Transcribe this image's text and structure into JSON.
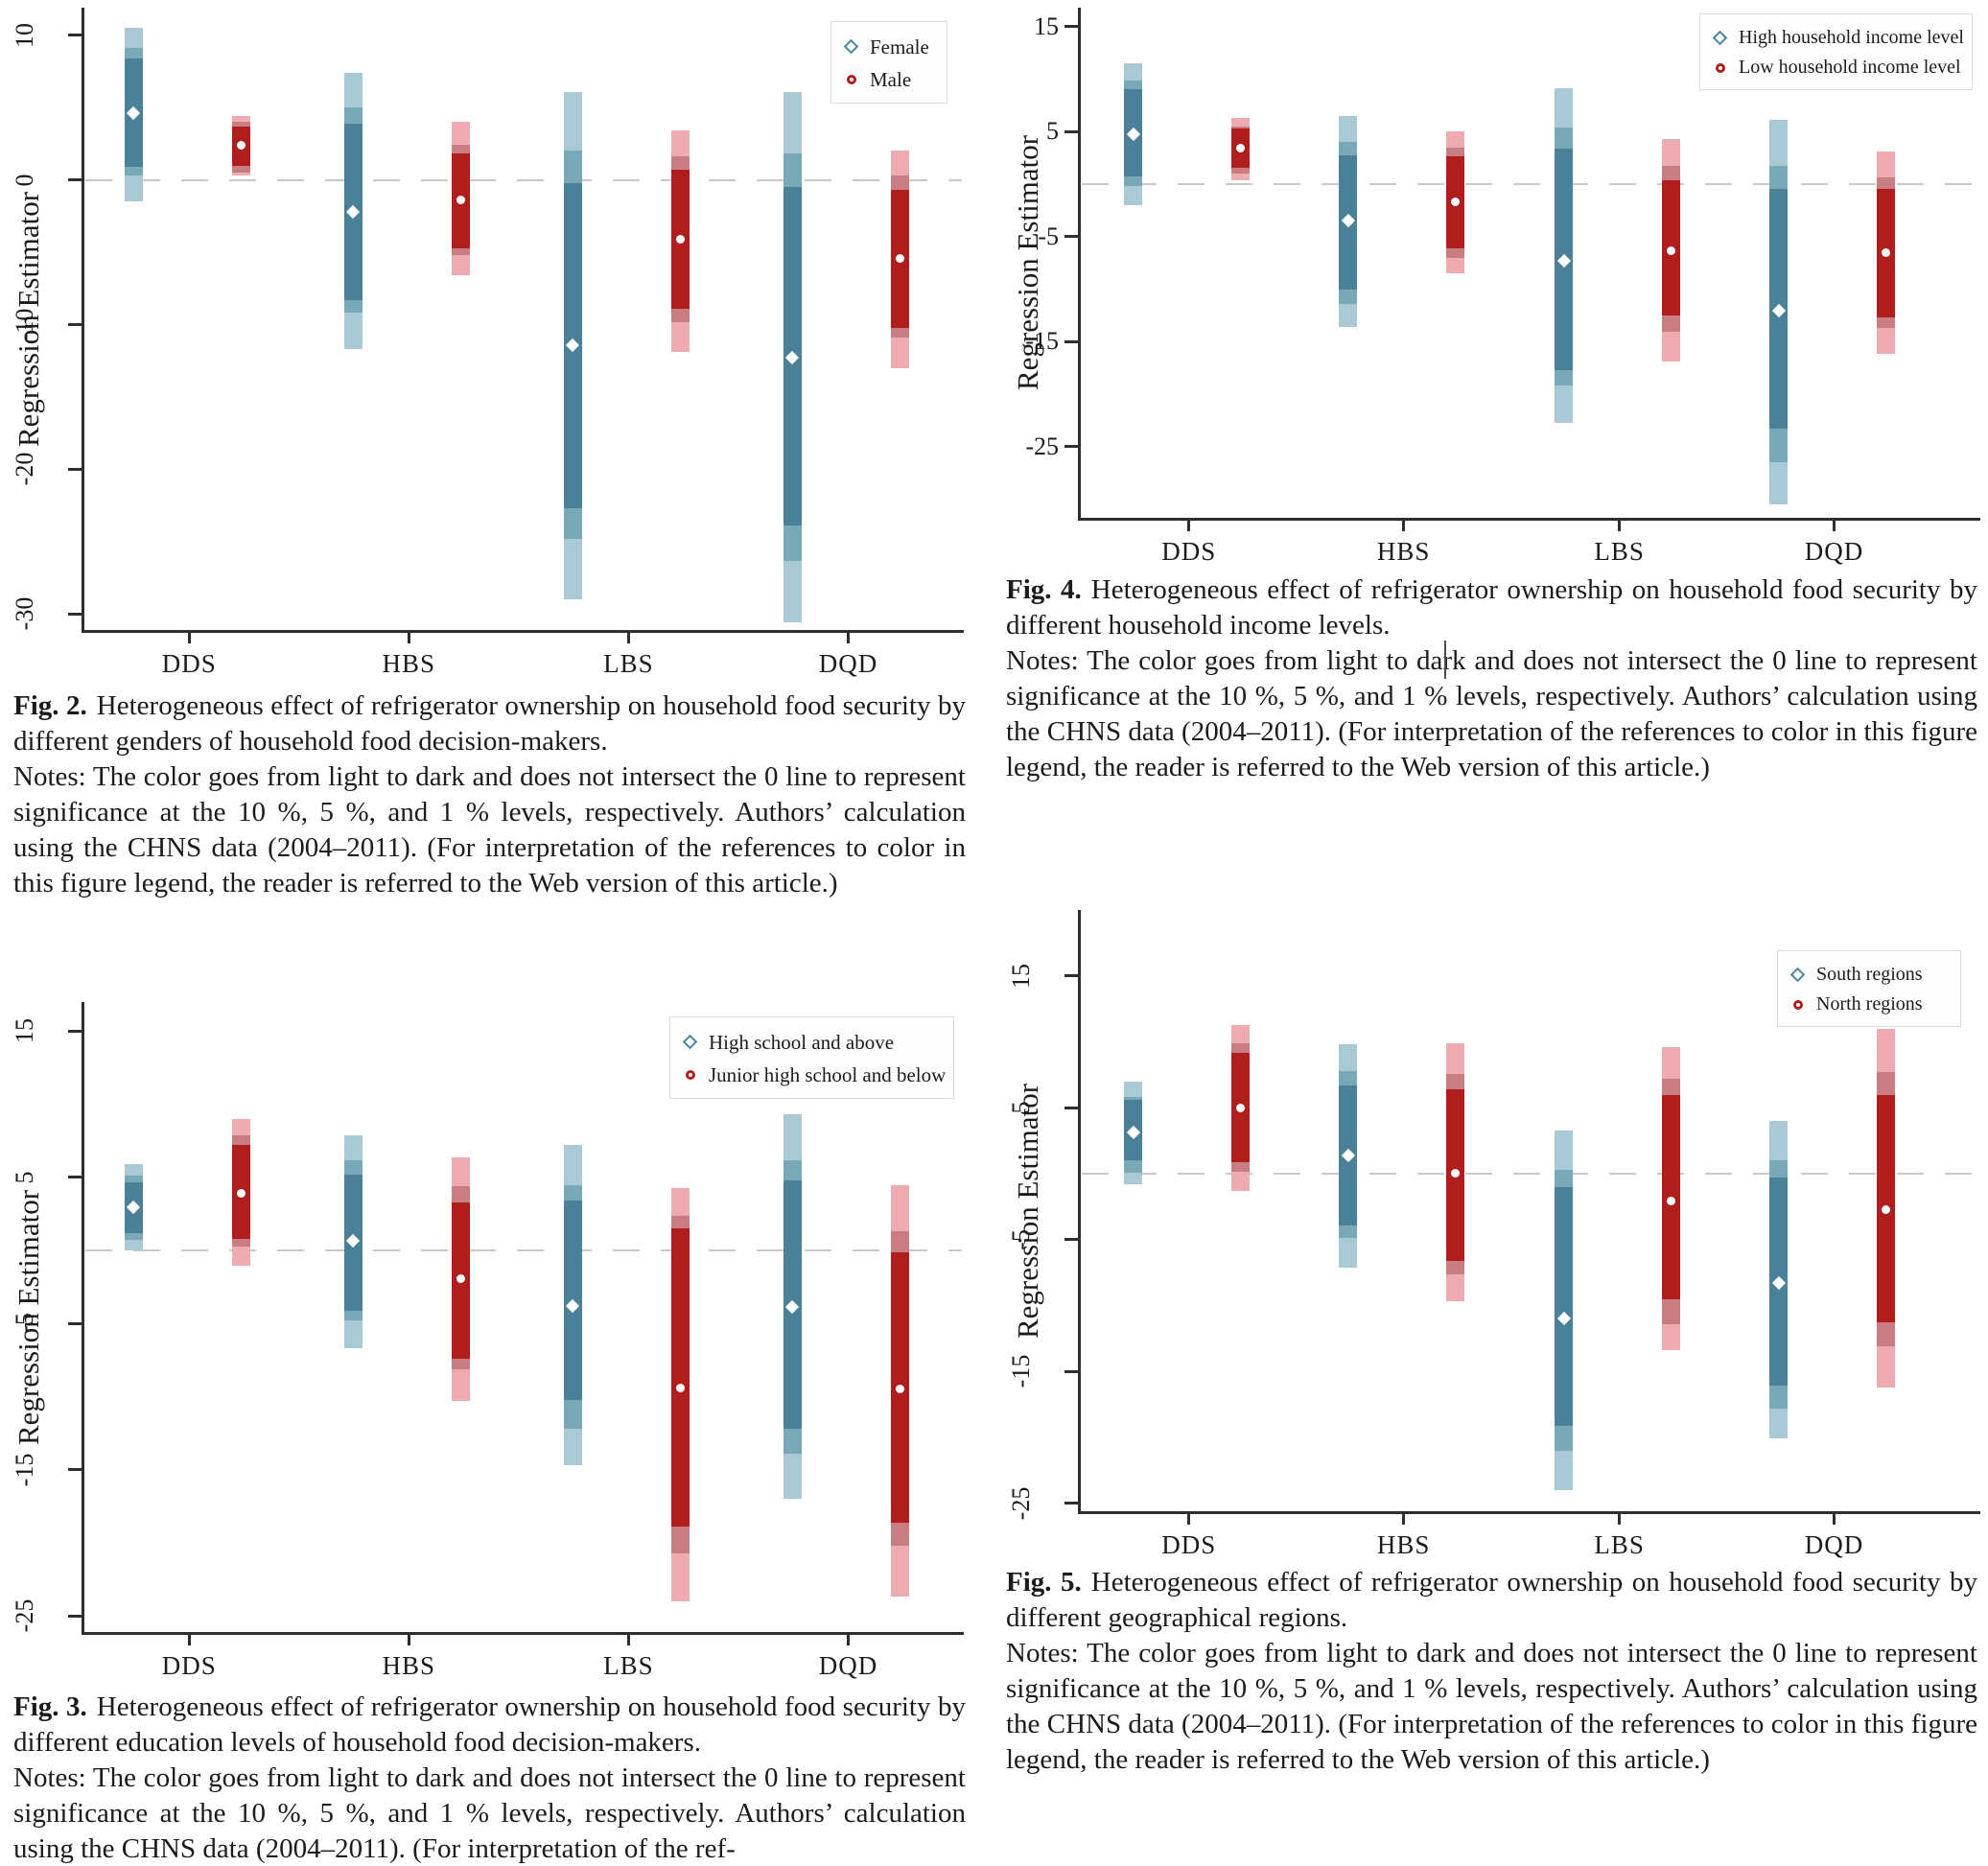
{
  "colors": {
    "teal": {
      "dark": "#4a8198",
      "mid": "#79a8b7",
      "light": "#a9c9d5"
    },
    "red": {
      "dark": "#b01d1d",
      "mid": "#c77d82",
      "light": "#eeabb1"
    },
    "axis": "#2e2e2e",
    "text": "#1b1b1b",
    "zero_line": "#c9c9c9",
    "legend_border": "#dcdcdc",
    "marker_fill": "#ffffff"
  },
  "chart_data": [
    {
      "id": "fig2",
      "type": "interval-bar",
      "ylabel": "Regression Estimator",
      "yticks": [
        10,
        0,
        -10,
        -20,
        -30
      ],
      "ylim": [
        11.9,
        -31.1
      ],
      "categories": [
        "DDS",
        "HBS",
        "LBS",
        "DQD"
      ],
      "zero_line": true,
      "legend_position": "top-right",
      "series": [
        {
          "name": "Female",
          "marker": "diamond",
          "palette": "teal",
          "bars": [
            {
              "outer": [
                -1.5,
                10.5
              ],
              "mid": [
                0.3,
                9.1
              ],
              "inner": [
                0.9,
                8.4
              ],
              "center": 4.6
            },
            {
              "outer": [
                -11.7,
                7.4
              ],
              "mid": [
                -9.2,
                5.0
              ],
              "inner": [
                -8.3,
                3.9
              ],
              "center": -2.2
            },
            {
              "outer": [
                -29.0,
                6.1
              ],
              "mid": [
                -24.8,
                2.0
              ],
              "inner": [
                -22.7,
                -0.2
              ],
              "center": -11.4
            },
            {
              "outer": [
                -30.6,
                6.1
              ],
              "mid": [
                -26.3,
                1.8
              ],
              "inner": [
                -23.9,
                -0.5
              ],
              "center": -12.3
            }
          ]
        },
        {
          "name": "Male",
          "marker": "circle",
          "palette": "red",
          "bars": [
            {
              "outer": [
                0.3,
                4.4
              ],
              "mid": [
                0.5,
                4.0
              ],
              "inner": [
                1.0,
                3.7
              ],
              "center": 2.4
            },
            {
              "outer": [
                -6.6,
                4.0
              ],
              "mid": [
                -5.2,
                2.4
              ],
              "inner": [
                -4.7,
                1.8
              ],
              "center": -1.4
            },
            {
              "outer": [
                -11.9,
                3.4
              ],
              "mid": [
                -9.8,
                1.6
              ],
              "inner": [
                -8.9,
                0.7
              ],
              "center": -4.1
            },
            {
              "outer": [
                -13.0,
                2.0
              ],
              "mid": [
                -10.9,
                0.3
              ],
              "inner": [
                -10.2,
                -0.7
              ],
              "center": -5.4
            }
          ]
        }
      ],
      "caption": {
        "label": "Fig. 2.",
        "body": "Heterogeneous effect of refrigerator ownership on household food security by different genders of household food decision-makers.",
        "notes": "Notes: The color goes from light to dark and does not intersect the 0 line to represent significance at the 10 %, 5 %, and 1 % levels, respectively. Authors’ calculation using the CHNS data (2004–2011). (For interpretation of the references to color in this figure legend, the reader is referred to the Web version of this article.)"
      }
    },
    {
      "id": "fig3",
      "type": "interval-bar",
      "ylabel": "Regression Estimator",
      "yticks": [
        15,
        5,
        -5,
        -15,
        -25
      ],
      "ylim": [
        17.0,
        -26.1
      ],
      "categories": [
        "DDS",
        "HBS",
        "LBS",
        "DQD"
      ],
      "zero_line": true,
      "legend_position": "top-right",
      "series": [
        {
          "name": "High school and above",
          "marker": "diamond",
          "palette": "teal",
          "bars": [
            {
              "outer": [
                0.0,
                5.9
              ],
              "mid": [
                0.7,
                5.1
              ],
              "inner": [
                1.2,
                4.65
              ],
              "center": 2.95
            },
            {
              "outer": [
                -6.7,
                7.9
              ],
              "mid": [
                -4.8,
                6.2
              ],
              "inner": [
                -4.1,
                5.2
              ],
              "center": 0.65
            },
            {
              "outer": [
                -14.7,
                7.2
              ],
              "mid": [
                -12.2,
                4.5
              ],
              "inner": [
                -10.2,
                3.4
              ],
              "center": -3.8
            },
            {
              "outer": [
                -17.0,
                9.3
              ],
              "mid": [
                -13.9,
                6.2
              ],
              "inner": [
                -12.2,
                4.8
              ],
              "center": -3.85
            }
          ]
        },
        {
          "name": "Junior high school and below",
          "marker": "circle",
          "palette": "red",
          "bars": [
            {
              "outer": [
                -1.05,
                9.0
              ],
              "mid": [
                0.3,
                7.9
              ],
              "inner": [
                0.8,
                7.2
              ],
              "center": 3.9
            },
            {
              "outer": [
                -10.3,
                6.4
              ],
              "mid": [
                -8.1,
                4.4
              ],
              "inner": [
                -7.4,
                3.3
              ],
              "center": -1.9
            },
            {
              "outer": [
                -24.0,
                4.3
              ],
              "mid": [
                -20.7,
                2.4
              ],
              "inner": [
                -18.9,
                1.5
              ],
              "center": -9.4
            },
            {
              "outer": [
                -23.7,
                4.5
              ],
              "mid": [
                -20.2,
                1.3
              ],
              "inner": [
                -18.6,
                -0.1
              ],
              "center": -9.5
            }
          ]
        }
      ],
      "caption": {
        "label": "Fig. 3.",
        "body": "Heterogeneous effect of refrigerator ownership on household food security by different education levels of household food decision-makers.",
        "notes": "Notes: The color goes from light to dark and does not intersect the 0 line to represent significance at the 10 %, 5 %, and 1 % levels, respectively. Authors’ calculation using the CHNS data (2004–2011). (For interpretation of the ref-"
      }
    },
    {
      "id": "fig4",
      "type": "interval-bar",
      "ylabel": "Regression Estimator",
      "yticks": [
        15,
        5,
        -5,
        -15,
        -25
      ],
      "ylim": [
        16.8,
        -31.8
      ],
      "categories": [
        "DDS",
        "HBS",
        "LBS",
        "DQD"
      ],
      "zero_line": true,
      "legend_position": "top-right",
      "series": [
        {
          "name": "High household income level",
          "marker": "diamond",
          "palette": "teal",
          "bars": [
            {
              "outer": [
                -2.0,
                11.5
              ],
              "mid": [
                -0.2,
                9.9
              ],
              "inner": [
                0.7,
                9.0
              ],
              "center": 4.7
            },
            {
              "outer": [
                -13.6,
                6.5
              ],
              "mid": [
                -11.4,
                4.0
              ],
              "inner": [
                -10.1,
                2.7
              ],
              "center": -3.5
            },
            {
              "outer": [
                -22.8,
                9.1
              ],
              "mid": [
                -19.2,
                5.4
              ],
              "inner": [
                -17.7,
                3.4
              ],
              "center": -7.3
            },
            {
              "outer": [
                -30.5,
                6.1
              ],
              "mid": [
                -26.5,
                1.7
              ],
              "inner": [
                -23.3,
                -0.5
              ],
              "center": -12.1
            }
          ]
        },
        {
          "name": "Low household income level",
          "marker": "circle",
          "palette": "red",
          "bars": [
            {
              "outer": [
                0.4,
                6.3
              ],
              "mid": [
                1.0,
                5.5
              ],
              "inner": [
                1.5,
                5.3
              ],
              "center": 3.4
            },
            {
              "outer": [
                -8.5,
                5.0
              ],
              "mid": [
                -7.0,
                3.5
              ],
              "inner": [
                -6.1,
                2.6
              ],
              "center": -1.7
            },
            {
              "outer": [
                -16.9,
                4.3
              ],
              "mid": [
                -14.1,
                1.7
              ],
              "inner": [
                -12.5,
                0.4
              ],
              "center": -6.4
            },
            {
              "outer": [
                -16.2,
                3.1
              ],
              "mid": [
                -13.7,
                0.6
              ],
              "inner": [
                -12.7,
                -0.5
              ],
              "center": -6.5
            }
          ]
        }
      ],
      "caption": {
        "label": "Fig. 4.",
        "body": "Heterogeneous effect of refrigerator ownership on household food security by different household income levels.",
        "notes": "Notes: The color goes from light to dark and does not intersect the 0 line to represent significance at the 10 %, 5 %, and 1 % levels, respectively. Authors’ calculation using the CHNS data (2004–2011). (For interpretation of the references to color in this figure legend, the reader is referred to the Web version of this article.)"
      }
    },
    {
      "id": "fig5",
      "type": "interval-bar",
      "ylabel": "Regression Estimator",
      "yticks": [
        15,
        5,
        -5,
        -15,
        -25
      ],
      "ylim": [
        20.0,
        -25.6
      ],
      "categories": [
        "DDS",
        "HBS",
        "LBS",
        "DQD"
      ],
      "zero_line": true,
      "legend_position": "top-right",
      "series": [
        {
          "name": "South regions",
          "marker": "diamond",
          "palette": "teal",
          "bars": [
            {
              "outer": [
                -0.8,
                7.0
              ],
              "mid": [
                0.1,
                5.8
              ],
              "inner": [
                1.0,
                5.6
              ],
              "center": 3.1
            },
            {
              "outer": [
                -7.1,
                9.8
              ],
              "mid": [
                -4.9,
                7.8
              ],
              "inner": [
                -3.9,
                6.7
              ],
              "center": 1.4
            },
            {
              "outer": [
                -24.0,
                3.3
              ],
              "mid": [
                -21.0,
                0.3
              ],
              "inner": [
                -19.1,
                -1.0
              ],
              "center": -11.0
            },
            {
              "outer": [
                -20.1,
                4.0
              ],
              "mid": [
                -17.8,
                1.0
              ],
              "inner": [
                -16.1,
                -0.3
              ],
              "center": -8.3
            }
          ]
        },
        {
          "name": "North regions",
          "marker": "circle",
          "palette": "red",
          "bars": [
            {
              "outer": [
                -1.3,
                11.3
              ],
              "mid": [
                0.15,
                9.9
              ],
              "inner": [
                0.9,
                9.2
              ],
              "center": 5.0
            },
            {
              "outer": [
                -9.7,
                9.9
              ],
              "mid": [
                -7.6,
                7.6
              ],
              "inner": [
                -6.6,
                6.4
              ],
              "center": 0.05
            },
            {
              "outer": [
                -13.4,
                9.6
              ],
              "mid": [
                -11.4,
                7.2
              ],
              "inner": [
                -9.5,
                6.0
              ],
              "center": -2.1
            },
            {
              "outer": [
                -16.2,
                11.0
              ],
              "mid": [
                -13.1,
                7.7
              ],
              "inner": [
                -11.3,
                6.0
              ],
              "center": -2.7
            }
          ]
        }
      ],
      "caption": {
        "label": "Fig. 5.",
        "body": "Heterogeneous effect of refrigerator ownership on household food security by different geographical regions.",
        "notes": "Notes: The color goes from light to dark and does not intersect the 0 line to represent significance at the 10 %, 5 %, and 1 % levels, respectively. Authors’ calculation using the CHNS data (2004–2011). (For interpretation of the references to color in this figure legend, the reader is referred to the Web version of this article.)"
      }
    }
  ]
}
